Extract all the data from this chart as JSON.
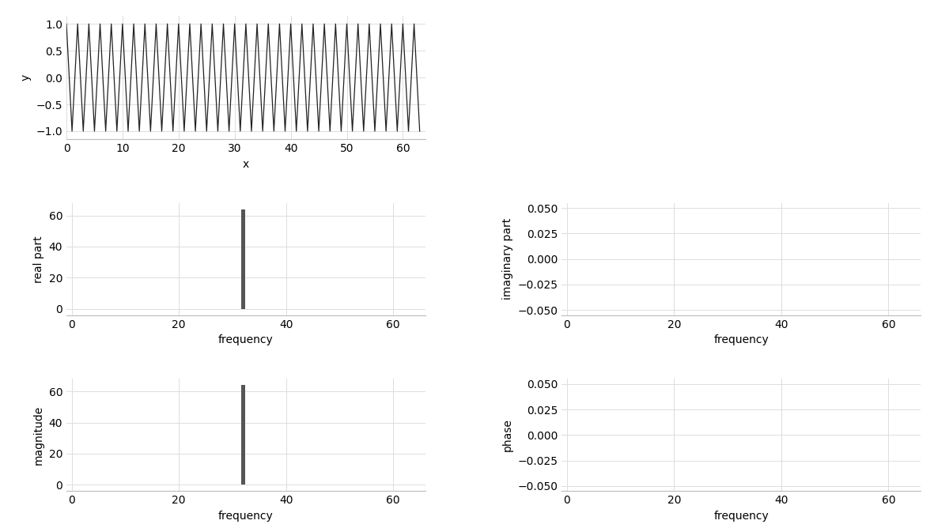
{
  "N": 64,
  "revolutions": 32,
  "bg_color": "#ffffff",
  "line_color": "#222222",
  "bar_color": "#555555",
  "grid_color": "#dddddd",
  "top_panel": {
    "xlabel": "x",
    "ylabel": "y",
    "xlim": [
      0,
      64
    ],
    "ylim": [
      -1.15,
      1.15
    ],
    "yticks": [
      -1.0,
      -0.5,
      0.0,
      0.5,
      1.0
    ],
    "xticks": [
      0,
      10,
      20,
      30,
      40,
      50,
      60
    ]
  },
  "real_panel": {
    "xlabel": "frequency",
    "ylabel": "real part",
    "xlim": [
      -1,
      66
    ],
    "ylim": [
      -4,
      68
    ],
    "xticks": [
      0,
      20,
      40,
      60
    ],
    "yticks": [
      0,
      20,
      40,
      60
    ]
  },
  "imag_panel": {
    "xlabel": "frequency",
    "ylabel": "imaginary part",
    "xlim": [
      -1,
      66
    ],
    "ylim": [
      -0.055,
      0.055
    ],
    "xticks": [
      0,
      20,
      40,
      60
    ],
    "yticks": [
      -0.05,
      -0.025,
      0.0,
      0.025,
      0.05
    ]
  },
  "mag_panel": {
    "xlabel": "frequency",
    "ylabel": "magnitude",
    "xlim": [
      -1,
      66
    ],
    "ylim": [
      -4,
      68
    ],
    "xticks": [
      0,
      20,
      40,
      60
    ],
    "yticks": [
      0,
      20,
      40,
      60
    ]
  },
  "phase_panel": {
    "xlabel": "frequency",
    "ylabel": "phase",
    "xlim": [
      -1,
      66
    ],
    "ylim": [
      -0.055,
      0.055
    ],
    "xticks": [
      0,
      20,
      40,
      60
    ],
    "yticks": [
      -0.05,
      -0.025,
      0.0,
      0.025,
      0.05
    ]
  }
}
